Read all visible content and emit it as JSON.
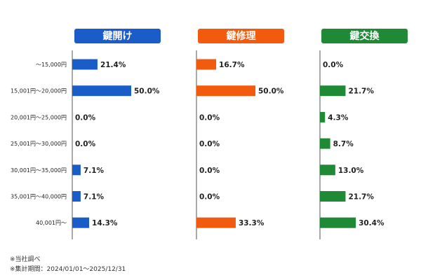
{
  "chart_data": {
    "type": "bar",
    "orientation": "horizontal",
    "categories": [
      "～15,000円",
      "15,001円～20,000円",
      "20,001円～25,000円",
      "25,001円～30,000円",
      "30,001円～35,000円",
      "35,001円～40,000円",
      "40,001円～"
    ],
    "value_unit": "%",
    "series": [
      {
        "name": "鍵開け",
        "color": "#1a5cc8",
        "values": [
          21.4,
          50.0,
          0.0,
          0.0,
          7.1,
          7.1,
          14.3
        ]
      },
      {
        "name": "鍵修理",
        "color": "#f25a0e",
        "values": [
          16.7,
          50.0,
          0.0,
          0.0,
          0.0,
          0.0,
          33.3
        ]
      },
      {
        "name": "鍵交換",
        "color": "#1e8a35",
        "values": [
          0.0,
          21.7,
          4.3,
          8.7,
          13.0,
          21.7,
          30.4
        ]
      }
    ],
    "xlim": [
      0,
      100
    ],
    "grid": false
  },
  "notes": [
    "※当社調べ",
    "※集計期間：2024/01/01～2025/12/31"
  ]
}
